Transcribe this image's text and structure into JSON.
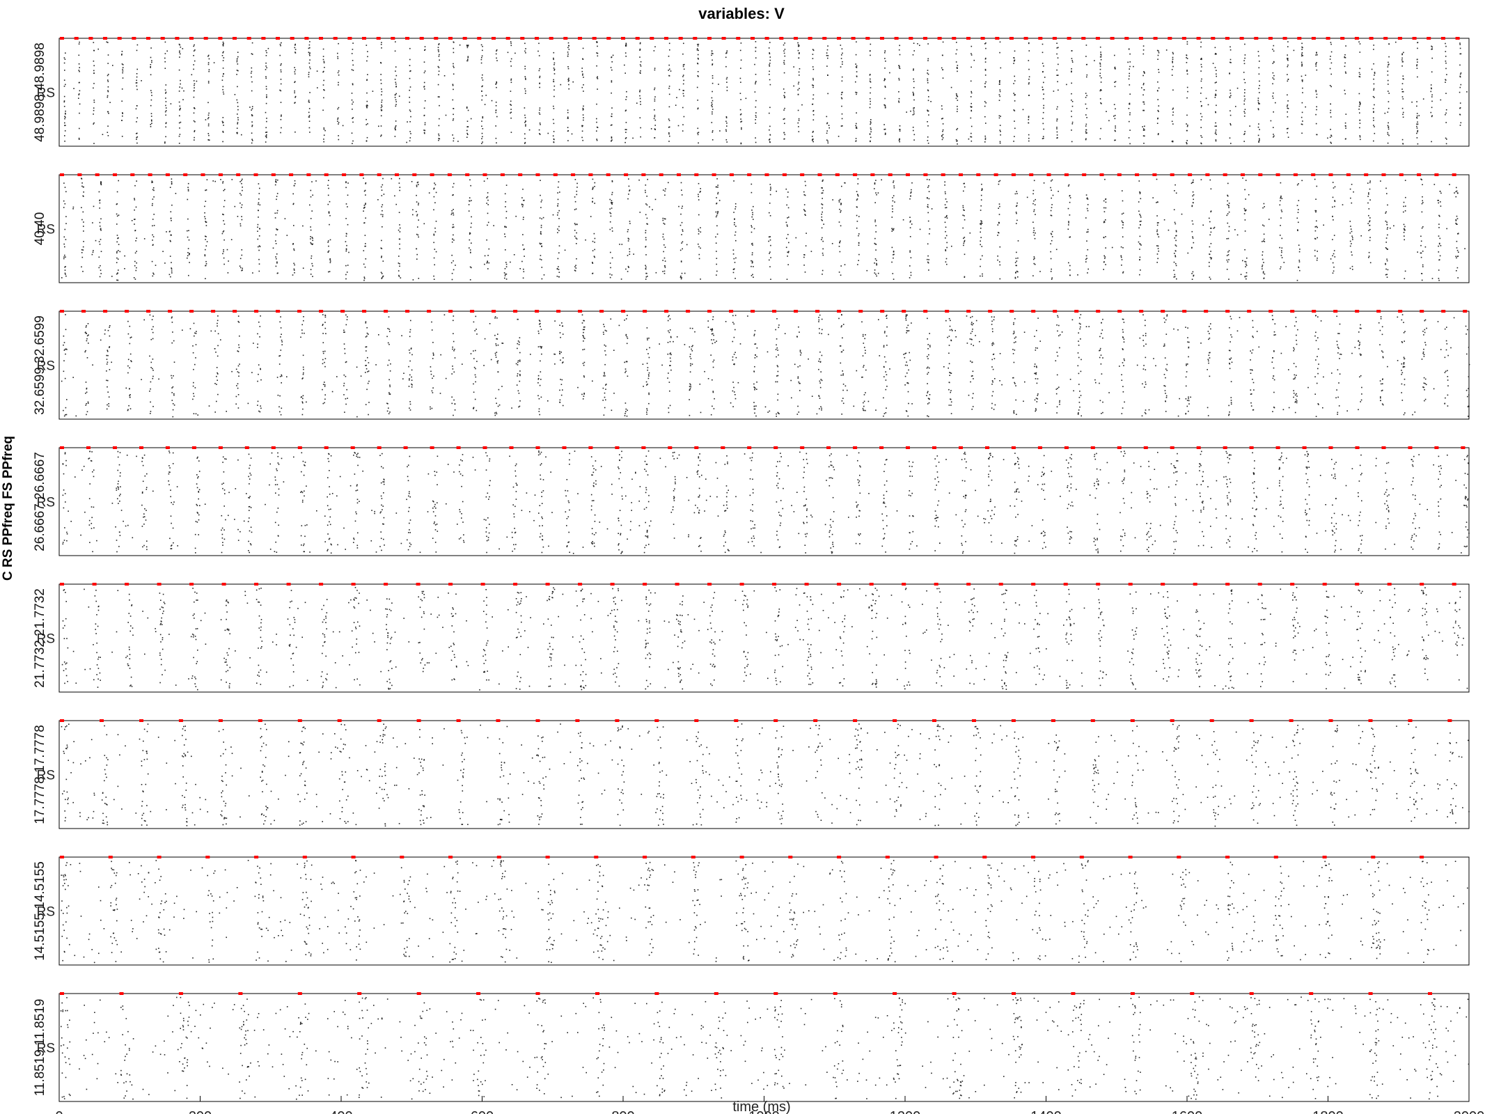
{
  "chart_data": {
    "type": "scatter",
    "title": "variables: V",
    "xlabel": "time (ms)",
    "ylabel_outer": "C RS PPfreq FS PPfreq",
    "xlim": [
      0,
      2000
    ],
    "x_ticks": [
      "0",
      "200",
      "400",
      "600",
      "800",
      "1000",
      "1200",
      "1400",
      "1600",
      "1800",
      "2000"
    ],
    "grid": false,
    "panels": [
      {
        "ylabel": "48.9898 48.9898",
        "row_label": "RS",
        "freq": 48.9898,
        "period_ms": 20.41
      },
      {
        "ylabel": "40 40",
        "row_label": "RS",
        "freq": 40,
        "period_ms": 25.0
      },
      {
        "ylabel": "32.6599 32.6599",
        "row_label": "RS",
        "freq": 32.6599,
        "period_ms": 30.62
      },
      {
        "ylabel": "26.6667 26.6667",
        "row_label": "RS",
        "freq": 26.6667,
        "period_ms": 37.5
      },
      {
        "ylabel": "21.7732 21.7732",
        "row_label": "RS",
        "freq": 21.7732,
        "period_ms": 45.93
      },
      {
        "ylabel": "17.7778 17.7778",
        "row_label": "RS",
        "freq": 17.7778,
        "period_ms": 56.25
      },
      {
        "ylabel": "14.5155 14.5155",
        "row_label": "RS",
        "freq": 14.5155,
        "period_ms": 68.89
      },
      {
        "ylabel": "11.8519 11.8519",
        "row_label": "RS",
        "freq": 11.8519,
        "period_ms": 84.38
      }
    ],
    "series": [
      {
        "name": "RS spikes",
        "color": "#000000"
      },
      {
        "name": "PPfreq pulses",
        "color": "#ff0000"
      }
    ]
  }
}
